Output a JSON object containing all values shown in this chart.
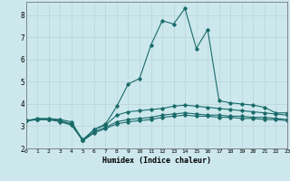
{
  "xlabel": "Humidex (Indice chaleur)",
  "background_color": "#cce8ed",
  "grid_color": "#b8d4d8",
  "line_color": "#1a6b6a",
  "x_values": [
    0,
    1,
    2,
    3,
    4,
    5,
    6,
    7,
    8,
    9,
    10,
    11,
    12,
    13,
    14,
    15,
    16,
    17,
    18,
    19,
    20,
    21,
    22,
    23
  ],
  "series": {
    "line1": [
      3.25,
      3.35,
      3.35,
      3.3,
      3.2,
      2.35,
      2.85,
      3.1,
      3.9,
      4.9,
      5.15,
      6.65,
      7.75,
      7.6,
      8.3,
      6.5,
      7.35,
      4.15,
      4.05,
      4.0,
      3.95,
      3.85,
      3.6,
      3.6
    ],
    "line2": [
      3.25,
      3.3,
      3.3,
      3.25,
      3.1,
      2.4,
      2.85,
      3.05,
      3.5,
      3.65,
      3.7,
      3.75,
      3.8,
      3.9,
      3.95,
      3.9,
      3.85,
      3.8,
      3.75,
      3.7,
      3.65,
      3.6,
      3.55,
      3.5
    ],
    "line3": [
      3.25,
      3.3,
      3.3,
      3.25,
      3.1,
      2.35,
      2.75,
      2.95,
      3.2,
      3.3,
      3.35,
      3.4,
      3.5,
      3.55,
      3.6,
      3.55,
      3.5,
      3.5,
      3.45,
      3.45,
      3.4,
      3.4,
      3.35,
      3.3
    ],
    "line4": [
      3.25,
      3.3,
      3.3,
      3.2,
      3.05,
      2.35,
      2.7,
      2.9,
      3.1,
      3.2,
      3.25,
      3.3,
      3.4,
      3.45,
      3.5,
      3.45,
      3.45,
      3.4,
      3.4,
      3.35,
      3.35,
      3.3,
      3.3,
      3.25
    ]
  },
  "ylim": [
    2.0,
    8.6
  ],
  "xlim": [
    0,
    23
  ],
  "yticks": [
    2,
    3,
    4,
    5,
    6,
    7,
    8
  ],
  "xticks": [
    0,
    1,
    2,
    3,
    4,
    5,
    6,
    7,
    8,
    9,
    10,
    11,
    12,
    13,
    14,
    15,
    16,
    17,
    18,
    19,
    20,
    21,
    22,
    23
  ],
  "figsize": [
    3.2,
    2.0
  ],
  "dpi": 100
}
